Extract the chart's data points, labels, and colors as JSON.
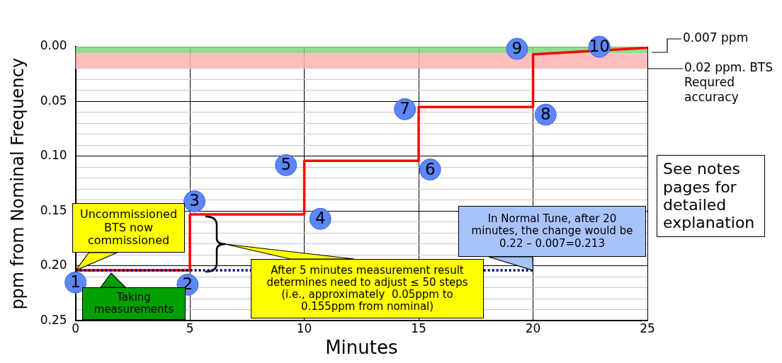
{
  "chart_data": {
    "type": "line",
    "xlabel": "Minutes",
    "ylabel": "ppm from Nominal Frequency",
    "xlim": [
      0,
      25
    ],
    "xticks": [
      0,
      5,
      10,
      15,
      20,
      25
    ],
    "ylim": [
      0.25,
      0
    ],
    "yticks": [
      {
        "value": 0,
        "label": "0.00"
      },
      {
        "value": 0.01,
        "label": null
      },
      {
        "value": 0.02,
        "label": null
      },
      {
        "value": 0.03,
        "label": null
      },
      {
        "value": 0.04,
        "label": null
      },
      {
        "value": 0.05,
        "label": "0.05"
      },
      {
        "value": 0.06,
        "label": null
      },
      {
        "value": 0.07,
        "label": null
      },
      {
        "value": 0.08,
        "label": null
      },
      {
        "value": 0.09,
        "label": null
      },
      {
        "value": 0.1,
        "label": "0.10"
      },
      {
        "value": 0.11,
        "label": null
      },
      {
        "value": 0.12,
        "label": null
      },
      {
        "value": 0.13,
        "label": null
      },
      {
        "value": 0.14,
        "label": null
      },
      {
        "value": 0.15,
        "label": "0.15"
      },
      {
        "value": 0.16,
        "label": null
      },
      {
        "value": 0.17,
        "label": null
      },
      {
        "value": 0.18,
        "label": null
      },
      {
        "value": 0.19,
        "label": null
      },
      {
        "value": 0.2,
        "label": "0.20"
      },
      {
        "value": 0.21,
        "label": null
      },
      {
        "value": 0.22,
        "label": null
      },
      {
        "value": 0.23,
        "label": null
      },
      {
        "value": 0.24,
        "label": null
      },
      {
        "value": 0.25,
        "label": "0.25"
      }
    ],
    "grid": true,
    "legend": false,
    "marker": "none",
    "series": [
      {
        "color": "#ff0000",
        "x": [
          0,
          5,
          5,
          10,
          10,
          15,
          15,
          20,
          20,
          25
        ],
        "values": [
          0.204,
          0.204,
          0.153,
          0.153,
          0.104,
          0.104,
          0.055,
          0.055,
          0.007,
          0.001
        ],
        "line_style": "solid"
      },
      {
        "color": "#000080",
        "x": [
          0,
          20
        ],
        "values": [
          0.204,
          0.204
        ],
        "line_style": "dotted"
      }
    ],
    "bands": [
      {
        "axis": "y",
        "from": 0,
        "to": 0.006,
        "color": "#7fd67f"
      },
      {
        "axis": "y",
        "from": 0.006,
        "to": 0.02,
        "color": "#ffb3b3",
        "label": "0.02 ppm. BTS Requred accuracy"
      }
    ],
    "annotations": [
      {
        "text": "1",
        "x": 0,
        "y": 0.215
      },
      {
        "text": "2",
        "x": 4.9,
        "y": 0.217
      },
      {
        "text": "3",
        "x": 5.2,
        "y": 0.141
      },
      {
        "text": "4",
        "x": 10.7,
        "y": 0.157
      },
      {
        "text": "5",
        "x": 9.2,
        "y": 0.108
      },
      {
        "text": "6",
        "x": 15.5,
        "y": 0.112
      },
      {
        "text": "7",
        "x": 14.4,
        "y": 0.057
      },
      {
        "text": "8",
        "x": 20.55,
        "y": 0.062
      },
      {
        "text": "9",
        "x": 19.3,
        "y": 0.002
      },
      {
        "text": "10",
        "x": 22.9,
        "y": 0
      },
      "0.007 ppm",
      {
        "text": "Uncommissioned BTS now commissioned",
        "x": 0,
        "y": 0.204
      },
      "Taking measurements",
      "After 5 minutes measurement result determines need to adjust ≤ 50 steps (i.e., approximately  0.05ppm to 0.155ppm from nominal)",
      {
        "text": "In Normal Tune, after 20 minutes, the change would be 0.22 – 0.007=0.213",
        "x": 20,
        "y": 0.204
      },
      "See notes pages for detailed explanation"
    ]
  }
}
